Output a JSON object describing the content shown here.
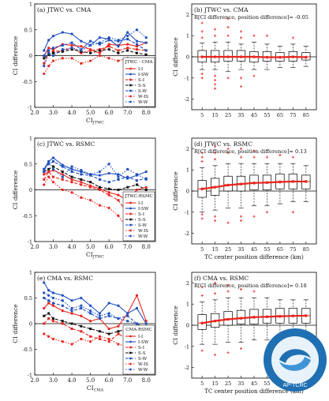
{
  "figure": {
    "panels": [
      {
        "label": "(a) JTWC vs. CMA",
        "ylabel": "CI difference",
        "xlabel": "CI",
        "xlabel_sub": "JTWC",
        "legend_title": "JTWC - CMA",
        "xticks": [
          "2.0",
          "3.0",
          "4.0",
          "5.0",
          "6.0",
          "7.0",
          "8.0"
        ],
        "yticks": [
          "-1",
          "-0.5",
          "0",
          "0.5",
          "1"
        ]
      },
      {
        "label": "(b) JTWC vs. CMA",
        "subtitle": "R[CI difference, position difference]= -0.05",
        "ylabel": "CI difference",
        "xlabel": "",
        "xticks": [
          "5",
          "15",
          "25",
          "35",
          "45",
          "55",
          "65",
          "75",
          "85"
        ],
        "yticks": [
          "-2",
          "-1",
          "0",
          "1",
          "2"
        ]
      },
      {
        "label": "(c) JTWC vs. RSMC",
        "ylabel": "CI difference",
        "xlabel": "CI",
        "xlabel_sub": "JTWC",
        "legend_title": "JTWC-RSMC",
        "xticks": [
          "2.0",
          "3.0",
          "4.0",
          "5.0",
          "6.0",
          "7.0",
          "8.0"
        ],
        "yticks": [
          "-1",
          "-0.5",
          "0",
          "0.5",
          "1"
        ]
      },
      {
        "label": "(d) JTWC vs. RSMC",
        "subtitle": "R[CI difference, position difference]= 0.13",
        "ylabel": "CI difference",
        "xlabel": "TC center position difference (km)",
        "xticks": [
          "5",
          "15",
          "25",
          "35",
          "45",
          "55",
          "65",
          "75",
          "85"
        ],
        "yticks": [
          "-2",
          "-1",
          "0",
          "1",
          "2"
        ]
      },
      {
        "label": "(e) CMA vs. RSMC",
        "ylabel": "CI difference",
        "xlabel": "CI",
        "xlabel_sub": "CMA",
        "legend_title": "CMA-RSMC",
        "xticks": [
          "2.0",
          "3.0",
          "4.0",
          "5.0",
          "6.0",
          "7.0",
          "8.0"
        ],
        "yticks": [
          "-1",
          "-0.5",
          "0",
          "0.5",
          "1"
        ]
      },
      {
        "label": "(f) CMA vs. RSMC",
        "subtitle": "R[CI difference, position difference]= 0.18",
        "ylabel": "CI difference",
        "xlabel": "TC center position difference (km)",
        "xticks": [
          "5",
          "15",
          "25",
          "35",
          "45",
          "55",
          "65",
          "75",
          "85"
        ],
        "yticks": [
          "-2",
          "-1",
          "0",
          "1",
          "2"
        ]
      }
    ],
    "logo": {
      "text_lines": [
        "AP-TCRC"
      ],
      "name": "ap-tcrc-logo"
    }
  },
  "chart_data": [
    {
      "panel": "a",
      "type": "line",
      "xlim": [
        2.0,
        8.5
      ],
      "ylim": [
        -1,
        1
      ],
      "grid": false,
      "legend_placement": "bottom-right",
      "x": [
        2.5,
        2.75,
        3.0,
        3.5,
        4.0,
        4.5,
        5.0,
        5.5,
        6.0,
        6.5,
        7.0,
        7.5,
        8.0
      ],
      "series": [
        {
          "name": "I-I",
          "color": "#e8251f",
          "style": "solid",
          "marker": "circle",
          "values": [
            0.0,
            0.15,
            0.12,
            0.22,
            0.2,
            0.18,
            0.12,
            0.05,
            0.22,
            0.2,
            0.22,
            0.18,
            0.25
          ]
        },
        {
          "name": "I-SW",
          "color": "#1f4fbf",
          "style": "solid",
          "marker": "circle",
          "values": [
            0.1,
            0.3,
            0.38,
            0.45,
            0.42,
            0.28,
            0.2,
            0.35,
            0.32,
            0.18,
            0.45,
            0.28,
            0.25
          ]
        },
        {
          "name": "S-I",
          "color": "#e8251f",
          "style": "dashed",
          "marker": "square",
          "values": [
            -0.15,
            0.05,
            0.08,
            0.1,
            0.15,
            0.05,
            0.1,
            0.12,
            0.18,
            0.1,
            0.15,
            0.12,
            0.1
          ]
        },
        {
          "name": "S-S",
          "color": "#111111",
          "style": "dashed",
          "marker": "square",
          "values": [
            -0.05,
            0.02,
            0.05,
            0.08,
            0.12,
            0.08,
            0.05,
            0.1,
            0.12,
            0.05,
            0.1,
            0.05,
            0.02
          ]
        },
        {
          "name": "S-W",
          "color": "#1f4fbf",
          "style": "dashed",
          "marker": "square",
          "values": [
            0.0,
            0.1,
            0.15,
            0.2,
            0.25,
            0.12,
            0.28,
            0.22,
            0.3,
            0.28,
            0.32,
            0.22,
            0.1
          ]
        },
        {
          "name": "W-IS",
          "color": "#e8251f",
          "style": "dotted",
          "marker": "circle",
          "values": [
            -0.35,
            -0.2,
            -0.1,
            -0.05,
            -0.05,
            -0.15,
            -0.1,
            0.0,
            -0.05,
            -0.1,
            -0.05,
            -0.1,
            -0.15
          ]
        },
        {
          "name": "W-W",
          "color": "#1f4fbf",
          "style": "dotted",
          "marker": "circle",
          "values": [
            -0.2,
            0.05,
            0.0,
            0.12,
            0.15,
            0.1,
            0.2,
            0.25,
            0.35,
            0.3,
            0.38,
            0.5,
            0.35
          ]
        }
      ]
    },
    {
      "panel": "b",
      "type": "box",
      "ylim": [
        -2.5,
        2.5
      ],
      "grid": false,
      "categories": [
        "5",
        "15",
        "25",
        "35",
        "45",
        "55",
        "65",
        "75",
        "85"
      ],
      "boxes": [
        {
          "q1": -0.25,
          "median": 0.0,
          "q3": 0.3,
          "wlo": -0.6,
          "whi": 0.65,
          "outliers": [
            -1.0,
            -0.8,
            0.9,
            1.2,
            1.6
          ]
        },
        {
          "q1": -0.25,
          "median": 0.0,
          "q3": 0.3,
          "wlo": -0.6,
          "whi": 0.7,
          "outliers": [
            -1.5,
            -1.3,
            -1.1,
            -0.9,
            1.0,
            1.3
          ]
        },
        {
          "q1": -0.2,
          "median": 0.0,
          "q3": 0.3,
          "wlo": -0.7,
          "whi": 0.7,
          "outliers": [
            -1.0,
            1.0,
            1.4,
            1.8
          ]
        },
        {
          "q1": -0.2,
          "median": 0.0,
          "q3": 0.3,
          "wlo": -0.6,
          "whi": 0.6,
          "outliers": [
            -1.4,
            -1.0,
            0.9,
            1.2
          ]
        },
        {
          "q1": -0.25,
          "median": 0.0,
          "q3": 0.25,
          "wlo": -0.6,
          "whi": 0.7,
          "outliers": [
            -0.9,
            1.0
          ]
        },
        {
          "q1": -0.2,
          "median": 0.0,
          "q3": 0.25,
          "wlo": -0.6,
          "whi": 0.6,
          "outliers": [
            1.0
          ]
        },
        {
          "q1": -0.2,
          "median": 0.0,
          "q3": 0.2,
          "wlo": -0.5,
          "whi": 0.5,
          "outliers": []
        },
        {
          "q1": -0.2,
          "median": 0.0,
          "q3": 0.25,
          "wlo": -0.5,
          "whi": 0.6,
          "outliers": [
            0.9
          ]
        },
        {
          "q1": -0.15,
          "median": 0.0,
          "q3": 0.2,
          "wlo": -0.45,
          "whi": 0.5,
          "outliers": []
        }
      ],
      "mean_line": [
        0.0,
        0.0,
        0.0,
        0.0,
        0.0,
        -0.02,
        -0.02,
        0.0,
        -0.02
      ]
    },
    {
      "panel": "c",
      "type": "line",
      "xlim": [
        2.0,
        8.5
      ],
      "ylim": [
        -1,
        1
      ],
      "grid": false,
      "legend_placement": "bottom-right",
      "x": [
        2.5,
        2.75,
        3.0,
        3.5,
        4.0,
        4.5,
        5.0,
        5.5,
        6.0,
        6.5,
        7.0,
        7.5,
        8.0
      ],
      "series": [
        {
          "name": "I-I",
          "color": "#e8251f",
          "style": "solid",
          "marker": "circle",
          "values": [
            0.3,
            0.35,
            0.38,
            0.3,
            0.2,
            0.15,
            0.08,
            0.02,
            -0.05,
            -0.1,
            -0.2,
            0.0,
            0.05
          ]
        },
        {
          "name": "I-SW",
          "color": "#1f4fbf",
          "style": "solid",
          "marker": "circle",
          "values": [
            0.4,
            0.55,
            0.62,
            0.48,
            0.4,
            0.35,
            0.3,
            0.28,
            0.32,
            0.3,
            0.22,
            0.28,
            0.35
          ]
        },
        {
          "name": "S-I",
          "color": "#e8251f",
          "style": "dashed",
          "marker": "square",
          "values": [
            0.2,
            0.35,
            0.25,
            0.2,
            0.15,
            0.1,
            0.05,
            0.0,
            -0.1,
            -0.2,
            -0.45,
            -0.3,
            -0.2
          ]
        },
        {
          "name": "S-S",
          "color": "#111111",
          "style": "dashed",
          "marker": "square",
          "values": [
            0.35,
            0.4,
            0.45,
            0.35,
            0.25,
            0.2,
            0.15,
            0.05,
            0.02,
            0.0,
            0.05,
            0.1,
            0.0
          ]
        },
        {
          "name": "S-W",
          "color": "#1f4fbf",
          "style": "dashed",
          "marker": "square",
          "values": [
            0.4,
            0.5,
            0.55,
            0.45,
            0.35,
            0.3,
            0.28,
            0.2,
            0.15,
            0.2,
            0.25,
            0.18,
            0.22
          ]
        },
        {
          "name": "W-IS",
          "color": "#e8251f",
          "style": "dotted",
          "marker": "circle",
          "values": [
            0.1,
            0.25,
            0.15,
            0.0,
            -0.05,
            -0.15,
            -0.2,
            -0.3,
            -0.35,
            -0.5,
            -0.75,
            -0.6,
            -0.5
          ]
        },
        {
          "name": "W-W",
          "color": "#1f4fbf",
          "style": "dotted",
          "marker": "circle",
          "values": [
            0.35,
            0.55,
            0.4,
            0.25,
            0.45,
            0.38,
            0.3,
            0.35,
            0.5,
            0.25,
            0.4,
            0.3,
            0.2
          ]
        }
      ]
    },
    {
      "panel": "d",
      "type": "box",
      "ylim": [
        -2.5,
        2.5
      ],
      "grid": false,
      "categories": [
        "5",
        "15",
        "25",
        "35",
        "45",
        "55",
        "65",
        "75",
        "85"
      ],
      "boxes": [
        {
          "q1": -0.3,
          "median": 0.1,
          "q3": 0.5,
          "wlo": -1.0,
          "whi": 1.1,
          "outliers": [
            -1.3,
            -1.1,
            1.4,
            1.6,
            1.8
          ]
        },
        {
          "q1": -0.2,
          "median": 0.2,
          "q3": 0.6,
          "wlo": -0.9,
          "whi": 1.2,
          "outliers": [
            -1.4,
            -1.2,
            1.5,
            1.8,
            2.1
          ]
        },
        {
          "q1": 0.0,
          "median": 0.3,
          "q3": 0.7,
          "wlo": -0.8,
          "whi": 1.3,
          "outliers": [
            -1.5,
            1.8,
            2.0
          ]
        },
        {
          "q1": 0.0,
          "median": 0.35,
          "q3": 0.7,
          "wlo": -0.8,
          "whi": 1.3,
          "outliers": [
            -1.4,
            -1.2,
            1.6,
            2.0
          ]
        },
        {
          "q1": 0.05,
          "median": 0.4,
          "q3": 0.75,
          "wlo": -0.7,
          "whi": 1.3,
          "outliers": [
            -1.2,
            1.6,
            1.9
          ]
        },
        {
          "q1": 0.05,
          "median": 0.4,
          "q3": 0.75,
          "wlo": -0.7,
          "whi": 1.3,
          "outliers": [
            -1.0,
            1.6
          ]
        },
        {
          "q1": 0.1,
          "median": 0.45,
          "q3": 0.8,
          "wlo": -0.6,
          "whi": 1.3,
          "outliers": [
            1.7
          ]
        },
        {
          "q1": 0.1,
          "median": 0.45,
          "q3": 0.8,
          "wlo": -0.5,
          "whi": 1.3,
          "outliers": [
            -1.0,
            1.6
          ]
        },
        {
          "q1": 0.1,
          "median": 0.45,
          "q3": 0.75,
          "wlo": -0.5,
          "whi": 1.2,
          "outliers": []
        }
      ],
      "mean_line": [
        0.1,
        0.18,
        0.28,
        0.33,
        0.38,
        0.4,
        0.43,
        0.45,
        0.45
      ]
    },
    {
      "panel": "e",
      "type": "line",
      "xlim": [
        2.0,
        8.5
      ],
      "ylim": [
        -1,
        1
      ],
      "grid": false,
      "legend_placement": "bottom-right",
      "x": [
        2.5,
        2.75,
        3.0,
        3.5,
        4.0,
        4.5,
        5.0,
        5.5,
        6.0,
        6.5,
        7.0,
        7.5,
        8.0
      ],
      "series": [
        {
          "name": "I-I",
          "color": "#e8251f",
          "style": "solid",
          "marker": "circle",
          "values": [
            0.3,
            0.4,
            0.35,
            0.25,
            0.2,
            0.15,
            0.05,
            0.1,
            -0.1,
            -0.05,
            0.2,
            0.55,
            0.05
          ]
        },
        {
          "name": "I-SW",
          "color": "#1f4fbf",
          "style": "solid",
          "marker": "circle",
          "values": [
            0.8,
            0.65,
            0.6,
            0.55,
            0.45,
            0.5,
            0.35,
            0.2,
            0.4,
            0.35,
            0.2,
            0.3,
            0.0
          ]
        },
        {
          "name": "S-I",
          "color": "#e8251f",
          "style": "dashed",
          "marker": "square",
          "values": [
            0.0,
            0.1,
            0.05,
            0.0,
            -0.1,
            -0.15,
            -0.25,
            -0.3,
            -0.35,
            -0.2,
            -0.3,
            -0.6,
            -0.5
          ]
        },
        {
          "name": "S-S",
          "color": "#111111",
          "style": "dashed",
          "marker": "square",
          "values": [
            0.15,
            0.2,
            0.1,
            0.05,
            0.0,
            -0.05,
            -0.1,
            -0.15,
            -0.2,
            -0.15,
            -0.1,
            -0.3,
            -0.2
          ]
        },
        {
          "name": "S-W",
          "color": "#1f4fbf",
          "style": "dashed",
          "marker": "square",
          "values": [
            0.5,
            0.45,
            0.4,
            0.35,
            0.25,
            0.3,
            0.2,
            0.1,
            0.15,
            0.1,
            0.15,
            0.0,
            -0.1
          ]
        },
        {
          "name": "W-IS",
          "color": "#e8251f",
          "style": "dotted",
          "marker": "circle",
          "values": [
            -0.2,
            -0.25,
            -0.3,
            -0.35,
            -0.4,
            -0.3,
            -0.35,
            -0.25,
            -0.3,
            -0.4,
            -0.45,
            -0.5,
            -0.4
          ]
        },
        {
          "name": "W-W",
          "color": "#1f4fbf",
          "style": "dotted",
          "marker": "circle",
          "values": [
            0.6,
            0.55,
            0.5,
            0.45,
            0.3,
            0.35,
            0.25,
            0.15,
            0.2,
            0.1,
            0.05,
            0.0,
            -0.1
          ]
        }
      ]
    },
    {
      "panel": "f",
      "type": "box",
      "ylim": [
        -2.5,
        2.5
      ],
      "grid": false,
      "categories": [
        "5",
        "15",
        "25",
        "35",
        "45",
        "55",
        "65",
        "75",
        "85"
      ],
      "boxes": [
        {
          "q1": -0.2,
          "median": 0.1,
          "q3": 0.5,
          "wlo": -0.9,
          "whi": 1.1,
          "outliers": [
            -1.2,
            1.4,
            1.8
          ]
        },
        {
          "q1": -0.1,
          "median": 0.2,
          "q3": 0.55,
          "wlo": -0.9,
          "whi": 1.2,
          "outliers": [
            -1.4,
            1.5,
            2.0
          ]
        },
        {
          "q1": 0.0,
          "median": 0.3,
          "q3": 0.65,
          "wlo": -0.8,
          "whi": 1.3,
          "outliers": [
            -1.3,
            1.6,
            1.9
          ]
        },
        {
          "q1": 0.05,
          "median": 0.35,
          "q3": 0.7,
          "wlo": -0.8,
          "whi": 1.3,
          "outliers": [
            -1.1,
            1.7
          ]
        },
        {
          "q1": 0.05,
          "median": 0.4,
          "q3": 0.75,
          "wlo": -0.7,
          "whi": 1.3,
          "outliers": [
            1.6
          ]
        },
        {
          "q1": 0.1,
          "median": 0.4,
          "q3": 0.75,
          "wlo": -0.7,
          "whi": 1.3,
          "outliers": []
        },
        {
          "q1": 0.1,
          "median": 0.45,
          "q3": 0.8,
          "wlo": -0.6,
          "whi": 1.2,
          "outliers": []
        },
        {
          "q1": 0.1,
          "median": 0.45,
          "q3": 0.8,
          "wlo": -0.6,
          "whi": 1.2,
          "outliers": []
        },
        {
          "q1": 0.1,
          "median": 0.45,
          "q3": 0.8,
          "wlo": -0.6,
          "whi": 1.2,
          "outliers": []
        }
      ],
      "mean_line": [
        0.1,
        0.2,
        0.28,
        0.33,
        0.38,
        0.4,
        0.42,
        0.44,
        0.45
      ]
    }
  ]
}
